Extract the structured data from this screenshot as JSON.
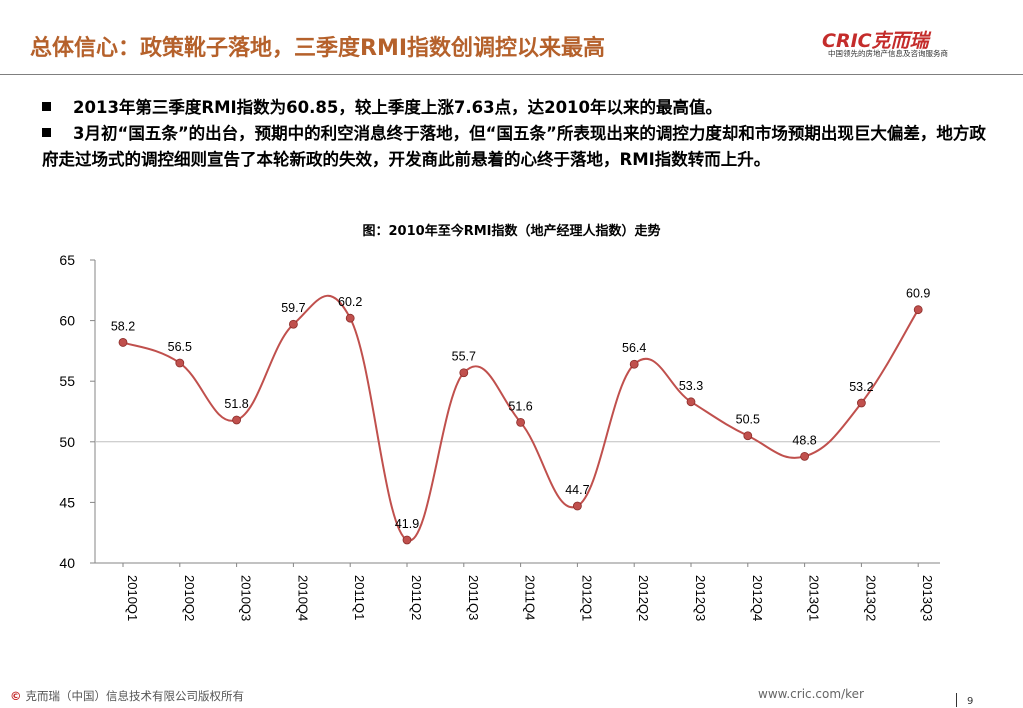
{
  "header": {
    "title": "总体信心：政策靴子落地，三季度RMI指数创调控以来最高",
    "logo_brand": "CRIC克而瑞",
    "logo_tagline": "中国领先的房地产信息及咨询服务商"
  },
  "bullets": [
    "2013年第三季度RMI指数为60.85，较上季度上涨7.63点，达2010年以来的最高值。",
    "3月初“国五条”的出台，预期中的利空消息终于落地，但“国五条”所表现出来的调控力度却和市场预期出现巨大偏差，地方政府走过场式的调控细则宣告了本轮新政的失效，开发商此前悬着的心终于落地，RMI指数转而上升。"
  ],
  "chart_data": {
    "type": "line",
    "title": "图：2010年至今RMI指数（地产经理人指数）走势",
    "categories": [
      "2010Q1",
      "2010Q2",
      "2010Q3",
      "2010Q4",
      "2011Q1",
      "2011Q2",
      "2011Q3",
      "2011Q4",
      "2012Q1",
      "2012Q2",
      "2012Q3",
      "2012Q4",
      "2013Q1",
      "2013Q2",
      "2013Q3"
    ],
    "series": [
      {
        "values": [
          58.2,
          56.5,
          51.8,
          59.7,
          60.2,
          41.9,
          55.7,
          51.6,
          44.7,
          56.4,
          53.3,
          50.5,
          48.8,
          53.2,
          60.9
        ]
      }
    ],
    "data_labels": [
      "58.2",
      "56.5",
      "51.8",
      "59.7",
      "60.2",
      "41.9",
      "55.7",
      "51.6",
      "44.7",
      "56.4",
      "53.3",
      "50.5",
      "48.8",
      "53.2",
      "60.9"
    ],
    "ylim": [
      40,
      65
    ],
    "yticks": [
      40,
      45,
      50,
      55,
      60,
      65
    ],
    "grid": "horizontal line at 50",
    "line_color": "#c0504d",
    "smooth": true,
    "xlabel": "",
    "ylabel": ""
  },
  "footer": {
    "copyright_symbol": "©",
    "copyright": "克而瑞（中国）信息技术有限公司版权所有",
    "url": "www.cric.com/ker",
    "page": "9"
  },
  "colors": {
    "title": "#b5612b",
    "brand": "#c42c2b",
    "line": "#c0504d"
  }
}
